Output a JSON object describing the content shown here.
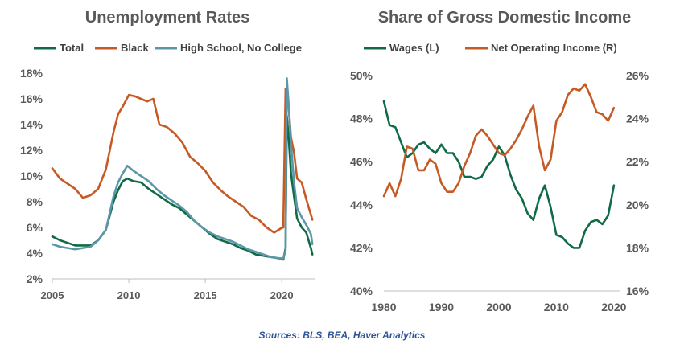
{
  "source": "Sources: BLS, BEA, Haver Analytics",
  "colors": {
    "green": "#0E6B45",
    "orange": "#C65A24",
    "teal": "#5B97A8",
    "title": "#595959",
    "source": "#2F5597"
  },
  "chart_data": [
    {
      "type": "line",
      "title": "Unemployment Rates",
      "xlabel": "",
      "ylabel": "",
      "xlim": [
        2005,
        2022.2
      ],
      "ylim": [
        2,
        18
      ],
      "x_ticks": [
        2005,
        2010,
        2015,
        2020
      ],
      "y_ticks": [
        2,
        4,
        6,
        8,
        10,
        12,
        14,
        16,
        18
      ],
      "y_tick_labels": [
        "2%",
        "4%",
        "6%",
        "8%",
        "10%",
        "12%",
        "14%",
        "16%",
        "18%"
      ],
      "legend": [
        "Total",
        "Black",
        "High School, No College"
      ],
      "series": [
        {
          "name": "Total",
          "color": "#0E6B45",
          "x": [
            2005.0,
            2005.5,
            2006.0,
            2006.5,
            2007.0,
            2007.5,
            2008.0,
            2008.5,
            2009.0,
            2009.3,
            2009.6,
            2009.9,
            2010.3,
            2010.8,
            2011.3,
            2011.8,
            2012.3,
            2012.8,
            2013.3,
            2013.8,
            2014.3,
            2014.8,
            2015.3,
            2015.8,
            2016.3,
            2016.8,
            2017.3,
            2017.8,
            2018.3,
            2018.8,
            2019.3,
            2019.8,
            2020.1,
            2020.25,
            2020.33,
            2020.45,
            2020.6,
            2020.8,
            2021.0,
            2021.3,
            2021.6,
            2021.9,
            2022.0
          ],
          "y": [
            5.3,
            5.0,
            4.8,
            4.6,
            4.6,
            4.6,
            5.0,
            5.8,
            8.0,
            8.9,
            9.6,
            9.8,
            9.6,
            9.5,
            9.0,
            8.6,
            8.2,
            7.8,
            7.5,
            7.0,
            6.5,
            6.0,
            5.5,
            5.1,
            4.9,
            4.7,
            4.4,
            4.2,
            3.9,
            3.8,
            3.7,
            3.6,
            3.5,
            4.4,
            14.7,
            13.0,
            10.2,
            8.4,
            6.7,
            6.0,
            5.6,
            4.4,
            3.9
          ]
        },
        {
          "name": "Black",
          "color": "#C65A24",
          "x": [
            2005.0,
            2005.5,
            2006.0,
            2006.5,
            2007.0,
            2007.5,
            2008.0,
            2008.5,
            2009.0,
            2009.3,
            2009.6,
            2010.0,
            2010.4,
            2010.8,
            2011.2,
            2011.6,
            2012.0,
            2012.5,
            2013.0,
            2013.5,
            2014.0,
            2014.5,
            2015.0,
            2015.5,
            2016.0,
            2016.5,
            2017.0,
            2017.5,
            2018.0,
            2018.5,
            2019.0,
            2019.5,
            2019.9,
            2020.1,
            2020.25,
            2020.33,
            2020.45,
            2020.6,
            2020.8,
            2021.0,
            2021.3,
            2021.6,
            2021.9,
            2022.0
          ],
          "y": [
            10.6,
            9.8,
            9.4,
            9.0,
            8.3,
            8.5,
            9.0,
            10.5,
            13.4,
            14.8,
            15.4,
            16.3,
            16.2,
            16.0,
            15.8,
            16.0,
            14.0,
            13.8,
            13.3,
            12.6,
            11.5,
            11.0,
            10.4,
            9.5,
            8.9,
            8.4,
            8.0,
            7.6,
            6.9,
            6.6,
            6.0,
            5.6,
            5.9,
            6.0,
            16.8,
            16.6,
            15.4,
            13.0,
            11.8,
            9.8,
            9.5,
            8.2,
            7.0,
            6.6
          ]
        },
        {
          "name": "High School, No College",
          "color": "#5B97A8",
          "x": [
            2005.0,
            2005.5,
            2006.0,
            2006.5,
            2007.0,
            2007.5,
            2008.0,
            2008.5,
            2009.0,
            2009.3,
            2009.6,
            2009.9,
            2010.3,
            2010.8,
            2011.3,
            2011.8,
            2012.3,
            2012.8,
            2013.3,
            2013.8,
            2014.3,
            2014.8,
            2015.3,
            2015.8,
            2016.3,
            2016.8,
            2017.3,
            2017.8,
            2018.3,
            2018.8,
            2019.3,
            2019.8,
            2020.1,
            2020.25,
            2020.33,
            2020.45,
            2020.6,
            2020.8,
            2021.0,
            2021.3,
            2021.6,
            2021.9,
            2022.0
          ],
          "y": [
            4.7,
            4.5,
            4.4,
            4.3,
            4.4,
            4.5,
            5.0,
            5.8,
            8.4,
            9.5,
            10.2,
            10.8,
            10.4,
            10.0,
            9.6,
            9.0,
            8.5,
            8.1,
            7.7,
            7.2,
            6.5,
            6.0,
            5.6,
            5.3,
            5.1,
            4.9,
            4.6,
            4.3,
            4.1,
            3.9,
            3.7,
            3.6,
            3.6,
            4.2,
            17.6,
            15.6,
            12.5,
            9.5,
            7.5,
            6.8,
            6.2,
            5.5,
            4.7
          ]
        }
      ]
    },
    {
      "type": "line",
      "title": "Share of Gross Domestic Income",
      "xlabel": "",
      "ylabel": "",
      "xlim": [
        1980,
        2021
      ],
      "ylim_left": [
        40,
        50
      ],
      "ylim_right": [
        16,
        26
      ],
      "x_ticks": [
        1980,
        1990,
        2000,
        2010,
        2020
      ],
      "y_ticks_left": [
        40,
        42,
        44,
        46,
        48,
        50
      ],
      "y_tick_labels_left": [
        "40%",
        "42%",
        "44%",
        "46%",
        "48%",
        "50%"
      ],
      "y_ticks_right": [
        16,
        18,
        20,
        22,
        24,
        26
      ],
      "y_tick_labels_right": [
        "16%",
        "18%",
        "20%",
        "22%",
        "24%",
        "26%"
      ],
      "legend": [
        "Wages (L)",
        "Net Operating Income (R)"
      ],
      "series": [
        {
          "name": "Wages (L)",
          "axis": "left",
          "color": "#0E6B45",
          "x": [
            1980,
            1981,
            1982,
            1983,
            1984,
            1985,
            1986,
            1987,
            1988,
            1989,
            1990,
            1991,
            1992,
            1993,
            1994,
            1995,
            1996,
            1997,
            1998,
            1999,
            2000,
            2001,
            2002,
            2003,
            2004,
            2005,
            2006,
            2007,
            2008,
            2009,
            2010,
            2011,
            2012,
            2013,
            2014,
            2015,
            2016,
            2017,
            2018,
            2019,
            2020
          ],
          "y": [
            48.8,
            47.7,
            47.6,
            46.9,
            46.2,
            46.4,
            46.8,
            46.9,
            46.6,
            46.4,
            46.8,
            46.4,
            46.4,
            46.0,
            45.3,
            45.3,
            45.2,
            45.3,
            45.8,
            46.1,
            46.7,
            46.3,
            45.4,
            44.7,
            44.3,
            43.6,
            43.3,
            44.3,
            44.9,
            43.9,
            42.6,
            42.5,
            42.2,
            42.0,
            42.0,
            42.8,
            43.2,
            43.3,
            43.1,
            43.5,
            44.9
          ]
        },
        {
          "name": "Net Operating Income (R)",
          "axis": "right",
          "color": "#C65A24",
          "x": [
            1980,
            1981,
            1982,
            1983,
            1984,
            1985,
            1986,
            1987,
            1988,
            1989,
            1990,
            1991,
            1992,
            1993,
            1994,
            1995,
            1996,
            1997,
            1998,
            1999,
            2000,
            2001,
            2002,
            2003,
            2004,
            2005,
            2006,
            2007,
            2008,
            2009,
            2010,
            2011,
            2012,
            2013,
            2014,
            2015,
            2016,
            2017,
            2018,
            2019,
            2020
          ],
          "y": [
            20.4,
            21.0,
            20.4,
            21.2,
            22.7,
            22.6,
            21.6,
            21.6,
            22.1,
            21.9,
            21.0,
            20.6,
            20.6,
            21.0,
            21.8,
            22.4,
            23.2,
            23.5,
            23.2,
            22.8,
            22.4,
            22.3,
            22.6,
            23.0,
            23.5,
            24.1,
            24.6,
            22.7,
            21.6,
            22.1,
            23.9,
            24.3,
            25.1,
            25.4,
            25.3,
            25.6,
            25.0,
            24.3,
            24.2,
            23.9,
            24.5
          ]
        }
      ]
    }
  ]
}
